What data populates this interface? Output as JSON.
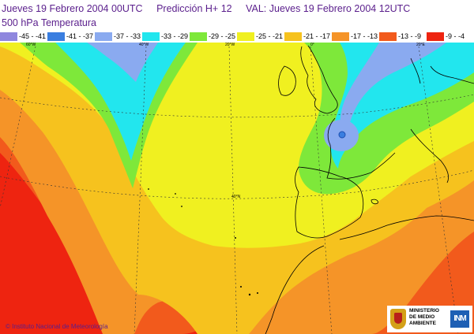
{
  "header": {
    "run": "Jueves 19 Febrero 2004 00UTC",
    "forecast": "Predicción H+ 12",
    "valid": "VAL: Jueves 19 Febrero 2004 12UTC",
    "field": "500  hPa Temperatura"
  },
  "legend": [
    {
      "label": "-45 - -41",
      "color": "#8f87de"
    },
    {
      "label": "-41 - -37",
      "color": "#3a7ee0"
    },
    {
      "label": "-37 - -33",
      "color": "#8aaaf0"
    },
    {
      "label": "-33 - -29",
      "color": "#22e6ee"
    },
    {
      "label": "-29 - -25",
      "color": "#7ee83a"
    },
    {
      "label": "-25 - -21",
      "color": "#f0f020"
    },
    {
      "label": "-21 - -17",
      "color": "#f6c21e"
    },
    {
      "label": "-17 - -13",
      "color": "#f59428"
    },
    {
      "label": "-13 - -9",
      "color": "#f25a1c"
    },
    {
      "label": "-9 - -4",
      "color": "#ee2410"
    }
  ],
  "map": {
    "meridian_labels": [
      "60°W",
      "40°W",
      "20°W",
      "0°",
      "20°E"
    ],
    "parallel_label": "40°N",
    "low_center_marker": "blue-dot"
  },
  "footer": {
    "credit": "© Instituto Nacional de Meteorología",
    "ministry": [
      "MINISTERIO",
      "DE MEDIO",
      "AMBIENTE"
    ],
    "logo": "INM"
  }
}
